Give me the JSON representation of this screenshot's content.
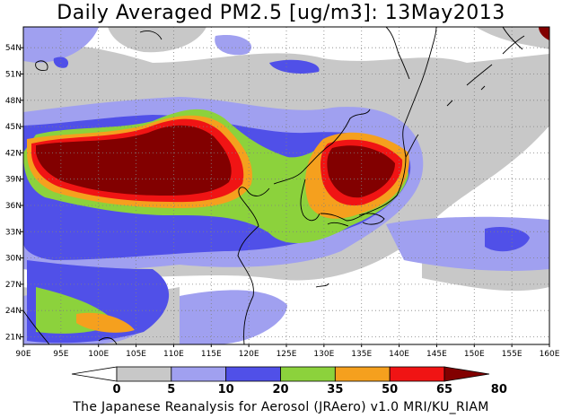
{
  "title": "Daily Averaged PM2.5 [ug/m3]: 13May2013",
  "credit": "The Japanese Reanalysis for Aerosol (JRAero) v1.0 MRI/KU_RIAM",
  "axes": {
    "lon_ticks": [
      "90E",
      "95E",
      "100E",
      "105E",
      "110E",
      "115E",
      "120E",
      "125E",
      "130E",
      "135E",
      "140E",
      "145E",
      "150E",
      "155E",
      "160E"
    ],
    "lat_ticks": [
      "21N",
      "24N",
      "27N",
      "30N",
      "33N",
      "36N",
      "39N",
      "42N",
      "45N",
      "48N",
      "51N",
      "54N"
    ]
  },
  "colorbar": {
    "levels": [
      "0",
      "5",
      "10",
      "20",
      "35",
      "50",
      "65",
      "80"
    ],
    "colors": [
      "#ffffff",
      "#c8c8c8",
      "#a0a0f0",
      "#5050e8",
      "#8cd23c",
      "#f5a01e",
      "#f01414",
      "#820000"
    ]
  }
}
